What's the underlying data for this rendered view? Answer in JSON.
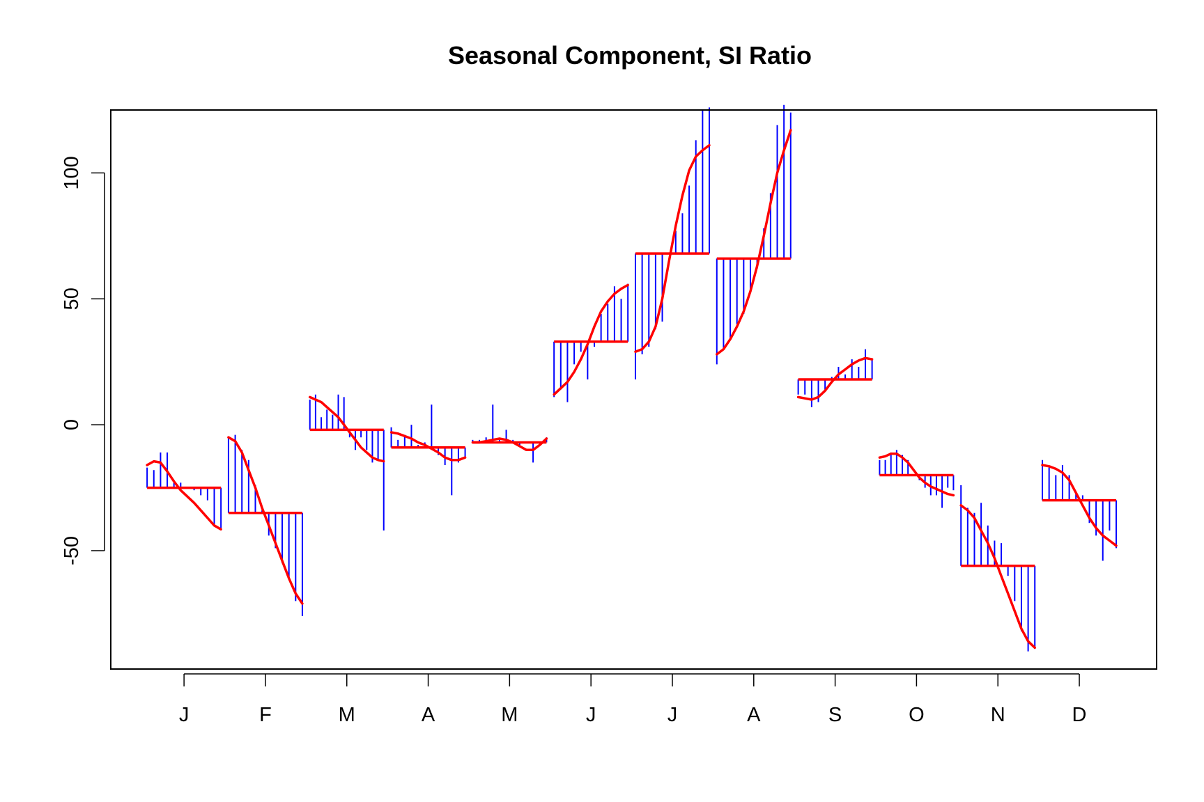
{
  "chart_data": {
    "type": "line",
    "title": "Seasonal Component, SI Ratio",
    "xlabel": "",
    "ylabel": "",
    "ylim": [
      -97,
      125
    ],
    "y_ticks": [
      -50,
      0,
      50,
      100
    ],
    "categories": [
      "J",
      "F",
      "M",
      "A",
      "M",
      "J",
      "J",
      "A",
      "S",
      "O",
      "N",
      "D"
    ],
    "colors": {
      "si_ratio": "#0000ff",
      "seasonal": "#ff0000",
      "mean": "#ff0000",
      "frame": "#000000"
    },
    "months": [
      {
        "label": "J",
        "mean": -25,
        "si": [
          -17,
          -18,
          -11,
          -11,
          -23,
          -23,
          -25,
          -26,
          -28,
          -30,
          -40,
          -41
        ],
        "seasonal": [
          -16,
          -14.5,
          -15,
          -18.5,
          -22.5,
          -26,
          -28.5,
          -31,
          -34,
          -37,
          -40,
          -41.5
        ]
      },
      {
        "label": "F",
        "mean": -35,
        "si": [
          -5,
          -4,
          -10,
          -14,
          -24,
          -34,
          -44,
          -49,
          -55,
          -61,
          -70,
          -76
        ],
        "seasonal": [
          -5,
          -6.5,
          -11,
          -18,
          -25,
          -33,
          -40,
          -47,
          -54,
          -61,
          -67,
          -71
        ]
      },
      {
        "label": "M",
        "mean": -2,
        "si": [
          10,
          12,
          3,
          6,
          4,
          12,
          11,
          -5,
          -10,
          -5,
          -10,
          -15,
          -14,
          -42
        ],
        "seasonal": [
          11,
          10,
          9,
          7,
          5,
          3,
          0,
          -3,
          -6,
          -9,
          -11,
          -13,
          -14,
          -14.5
        ]
      },
      {
        "label": "A",
        "mean": -9,
        "si": [
          -1,
          -6,
          -4,
          0,
          -8,
          -7,
          8,
          -12,
          -16,
          -28,
          -15,
          -13
        ],
        "seasonal": [
          -3,
          -3.5,
          -4.5,
          -5.5,
          -7,
          -8,
          -9.5,
          -11,
          -13,
          -14,
          -14,
          -13
        ]
      },
      {
        "label": "M",
        "mean": -7,
        "si": [
          -6,
          -6,
          -5,
          8,
          -6,
          -2,
          -6,
          -8,
          -7,
          -15,
          -8,
          -5
        ],
        "seasonal": [
          -7,
          -7,
          -6.5,
          -6,
          -5.5,
          -6,
          -7,
          -8.5,
          -10,
          -10,
          -8,
          -5.5
        ]
      },
      {
        "label": "J",
        "mean": 33,
        "si": [
          11,
          14,
          9,
          24,
          29,
          18,
          31,
          44,
          48,
          55,
          50,
          56
        ],
        "seasonal": [
          12,
          14.5,
          17,
          21,
          26,
          32,
          39,
          45,
          49,
          52,
          54,
          55.5
        ]
      },
      {
        "label": "J",
        "mean": 68,
        "si": [
          18,
          28,
          31,
          38,
          41,
          68,
          77,
          84,
          95,
          113,
          125,
          126
        ],
        "seasonal": [
          29,
          30,
          33,
          39,
          50,
          65,
          79,
          91,
          101,
          106.5,
          109,
          111
        ]
      },
      {
        "label": "A",
        "mean": 66,
        "si": [
          24,
          30,
          34,
          40,
          44,
          53,
          62,
          78,
          92,
          119,
          127,
          124
        ],
        "seasonal": [
          28,
          30,
          34,
          39,
          45,
          53,
          63,
          75,
          88,
          100,
          109,
          117
        ]
      },
      {
        "label": "S",
        "mean": 18,
        "si": [
          12,
          12,
          7,
          9,
          14,
          19,
          23,
          20,
          26,
          23,
          30,
          26
        ],
        "seasonal": [
          11,
          10.5,
          10,
          11,
          13.5,
          17,
          20,
          22,
          24,
          25.5,
          26.5,
          26
        ]
      },
      {
        "label": "O",
        "mean": -20,
        "si": [
          -14,
          -14,
          -11,
          -10,
          -12,
          -14,
          -20,
          -22,
          -25,
          -28,
          -28,
          -33,
          -25,
          -26
        ],
        "seasonal": [
          -13,
          -12.5,
          -11.5,
          -11.5,
          -13,
          -15,
          -18,
          -21,
          -23,
          -24.5,
          -25.5,
          -26.5,
          -27.5,
          -28
        ]
      },
      {
        "label": "N",
        "mean": -56,
        "si": [
          -24,
          -33,
          -35,
          -31,
          -40,
          -46,
          -47,
          -60,
          -70,
          -82,
          -90,
          -89
        ],
        "seasonal": [
          -32,
          -34,
          -37,
          -42,
          -47,
          -53,
          -60,
          -67,
          -74,
          -81,
          -86,
          -88.5
        ]
      },
      {
        "label": "D",
        "mean": -30,
        "si": [
          -14,
          -17,
          -20,
          -16,
          -20,
          -27,
          -28,
          -39,
          -44,
          -54,
          -42,
          -49
        ],
        "seasonal": [
          -16,
          -16.5,
          -17.5,
          -19,
          -22,
          -27,
          -32,
          -37,
          -41,
          -44,
          -46,
          -48
        ]
      }
    ]
  }
}
